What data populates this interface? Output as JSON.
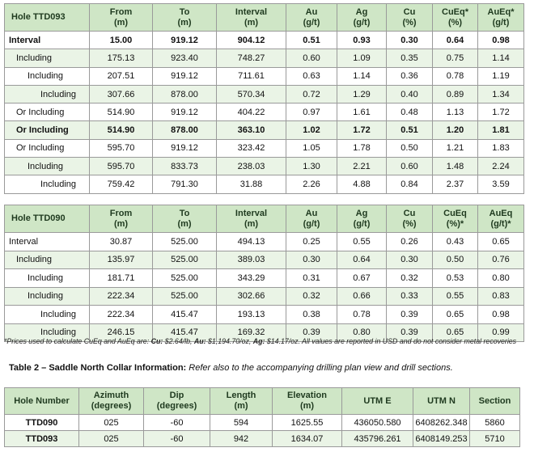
{
  "table1": {
    "headers": [
      "Hole TTD093",
      "From\n(m)",
      "To\n(m)",
      "Interval\n(m)",
      "Au\n(g/t)",
      "Ag\n(g/t)",
      "Cu\n(%)",
      "CuEq*\n(%)",
      "AuEq*\n(g/t)"
    ],
    "rows": [
      [
        "Interval",
        "15.00",
        "919.12",
        "904.12",
        "0.51",
        "0.93",
        "0.30",
        "0.64",
        "0.98"
      ],
      [
        "Including",
        "175.13",
        "923.40",
        "748.27",
        "0.60",
        "1.09",
        "0.35",
        "0.75",
        "1.14"
      ],
      [
        "Including",
        "207.51",
        "919.12",
        "711.61",
        "0.63",
        "1.14",
        "0.36",
        "0.78",
        "1.19"
      ],
      [
        "Including",
        "307.66",
        "878.00",
        "570.34",
        "0.72",
        "1.29",
        "0.40",
        "0.89",
        "1.34"
      ],
      [
        "Or Including",
        "514.90",
        "919.12",
        "404.22",
        "0.97",
        "1.61",
        "0.48",
        "1.13",
        "1.72"
      ],
      [
        "Or Including",
        "514.90",
        "878.00",
        "363.10",
        "1.02",
        "1.72",
        "0.51",
        "1.20",
        "1.81"
      ],
      [
        "Or Including",
        "595.70",
        "919.12",
        "323.42",
        "1.05",
        "1.78",
        "0.50",
        "1.21",
        "1.83"
      ],
      [
        "Including",
        "595.70",
        "833.73",
        "238.03",
        "1.30",
        "2.21",
        "0.60",
        "1.48",
        "2.24"
      ],
      [
        "Including",
        "759.42",
        "791.30",
        "31.88",
        "2.26",
        "4.88",
        "0.84",
        "2.37",
        "3.59"
      ]
    ]
  },
  "table2": {
    "headers": [
      "Hole TTD090",
      "From\n(m)",
      "To\n(m)",
      "Interval\n(m)",
      "Au\n(g/t)",
      "Ag\n(g/t)",
      "Cu\n(%)",
      "CuEq\n(%)*",
      "AuEq\n(g/t)*"
    ],
    "rows": [
      [
        "Interval",
        "30.87",
        "525.00",
        "494.13",
        "0.25",
        "0.55",
        "0.26",
        "0.43",
        "0.65"
      ],
      [
        "Including",
        "135.97",
        "525.00",
        "389.03",
        "0.30",
        "0.64",
        "0.30",
        "0.50",
        "0.76"
      ],
      [
        "Including",
        "181.71",
        "525.00",
        "343.29",
        "0.31",
        "0.67",
        "0.32",
        "0.53",
        "0.80"
      ],
      [
        "Including",
        "222.34",
        "525.00",
        "302.66",
        "0.32",
        "0.66",
        "0.33",
        "0.55",
        "0.83"
      ],
      [
        "Including",
        "222.34",
        "415.47",
        "193.13",
        "0.38",
        "0.78",
        "0.39",
        "0.65",
        "0.98"
      ],
      [
        "Including",
        "246.15",
        "415.47",
        "169.32",
        "0.39",
        "0.80",
        "0.39",
        "0.65",
        "0.99"
      ]
    ]
  },
  "footnote": {
    "prefix": "*Prices used to calculate CuEq and AuEq are: ",
    "cu_label": "Cu:",
    "cu_value": " $2.64/lb, ",
    "au_label": "Au:",
    "au_value": " $1,194.70/oz, ",
    "ag_label": "Ag:",
    "ag_value": " $14.17/oz. All values are reported in USD and do not consider metal recoveries"
  },
  "caption": {
    "title": "Table 2 – Saddle North Collar Information:",
    "note": "  Refer also to the accompanying drilling plan view and drill sections."
  },
  "table3": {
    "headers": [
      "Hole Number",
      "Azimuth\n(degrees)",
      "Dip\n(degrees)",
      "Length\n(m)",
      "Elevation\n(m)",
      "UTM E",
      "UTM N",
      "Section"
    ],
    "rows": [
      [
        "TTD090",
        "025",
        "-60",
        "594",
        "1625.55",
        "436050.580",
        "6408262.348",
        "5860"
      ],
      [
        "TTD093",
        "025",
        "-60",
        "942",
        "1634.07",
        "435796.261",
        "6408149.253",
        "5710"
      ]
    ]
  },
  "colors": {
    "header_bg": "#cfe6c6",
    "stripe_bg": "#eaf4e6",
    "border": "#9a9a9a"
  }
}
